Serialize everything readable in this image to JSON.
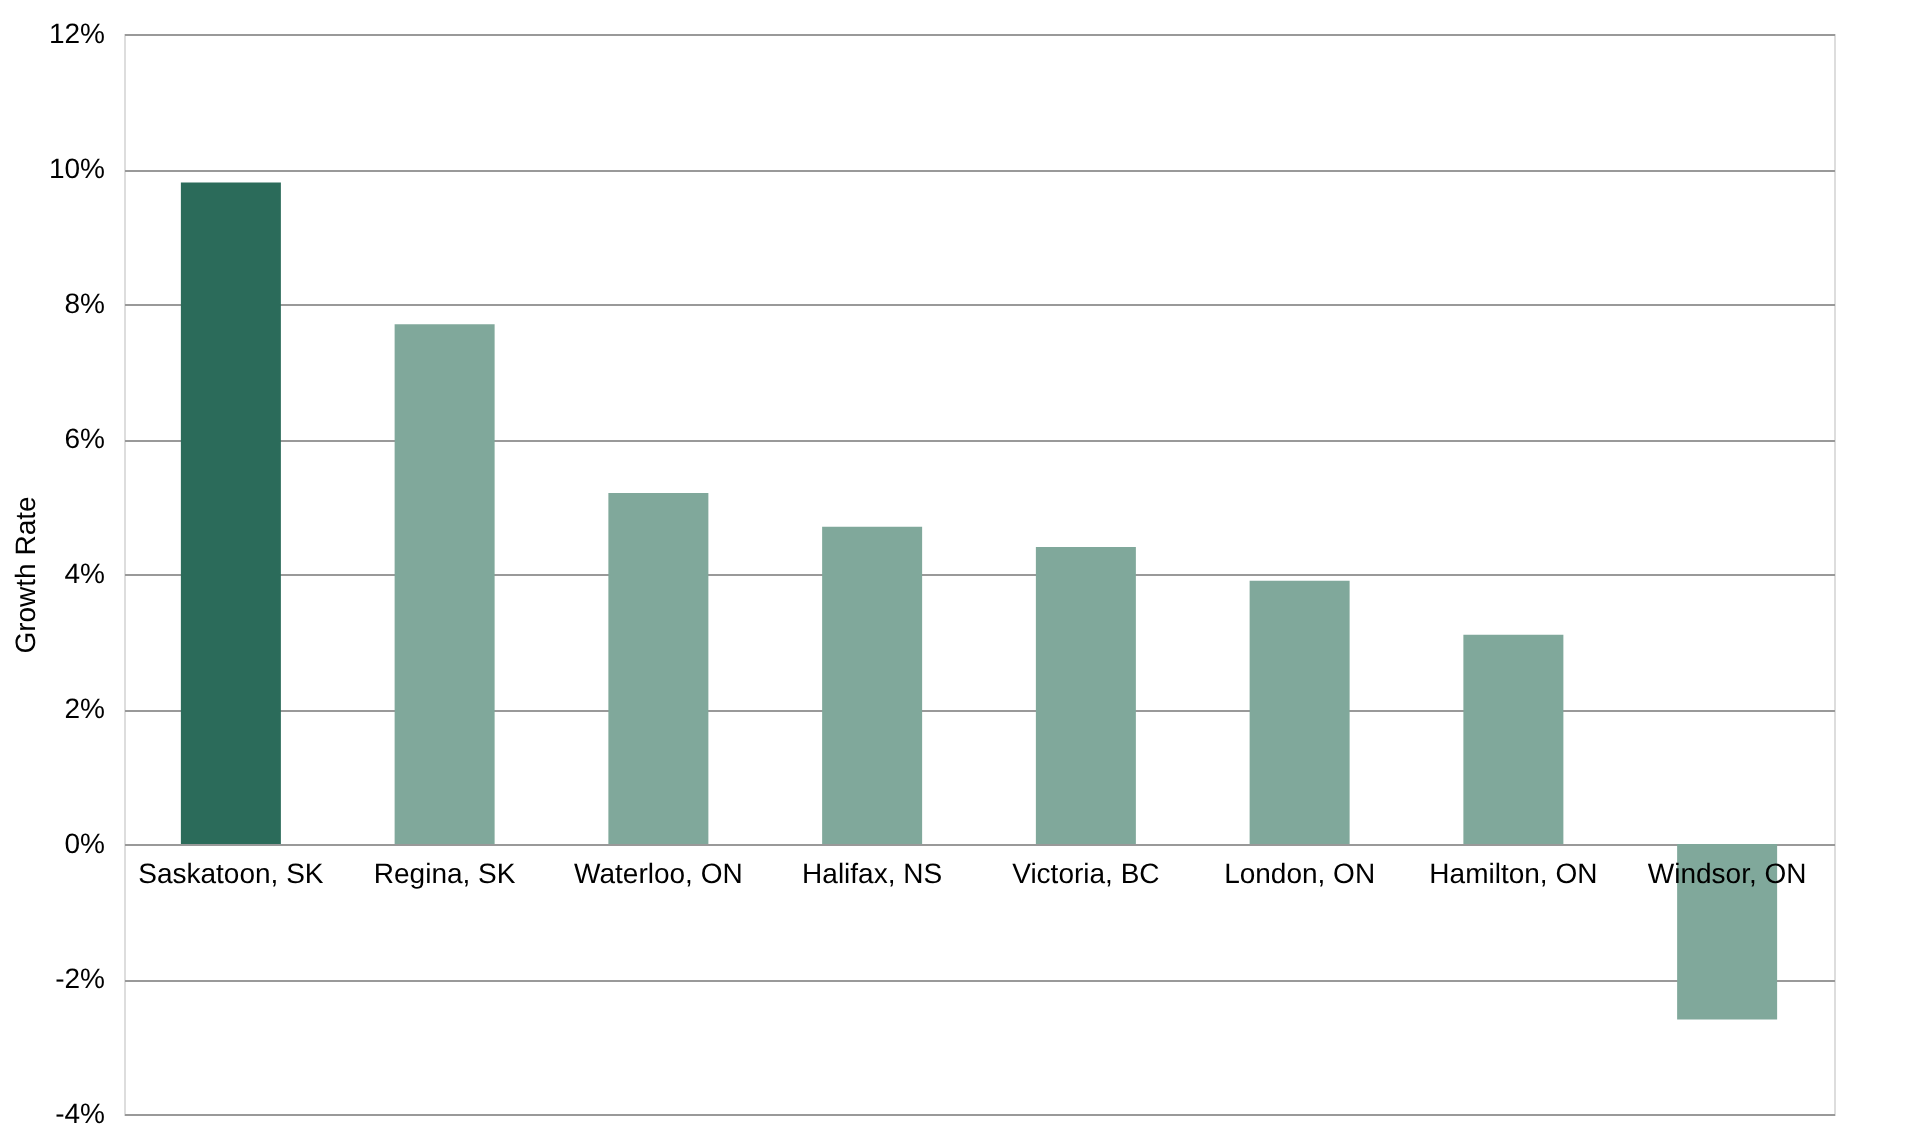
{
  "chart_data": {
    "type": "bar",
    "ylabel": "Growth Rate",
    "categories": [
      "Saskatoon, SK",
      "Regina, SK",
      "Waterloo, ON",
      "Halifax, NS",
      "Victoria, BC",
      "London, ON",
      "Hamilton, ON",
      "Windsor, ON"
    ],
    "values": [
      9.8,
      7.7,
      5.2,
      4.7,
      4.4,
      3.9,
      3.1,
      -2.6
    ],
    "colors": [
      "#2b6b5a",
      "#80a89b",
      "#80a89b",
      "#80a89b",
      "#80a89b",
      "#80a89b",
      "#80a89b",
      "#80a89b"
    ],
    "ylim": [
      -4,
      12
    ],
    "yticks": [
      {
        "value": -4,
        "label": "-4%"
      },
      {
        "value": -2,
        "label": "-2%"
      },
      {
        "value": 0,
        "label": "0%"
      },
      {
        "value": 2,
        "label": "2%"
      },
      {
        "value": 4,
        "label": "4%"
      },
      {
        "value": 6,
        "label": "6%"
      },
      {
        "value": 8,
        "label": "8%"
      },
      {
        "value": 10,
        "label": "10%"
      },
      {
        "value": 12,
        "label": "12%"
      }
    ],
    "grid": "y"
  }
}
